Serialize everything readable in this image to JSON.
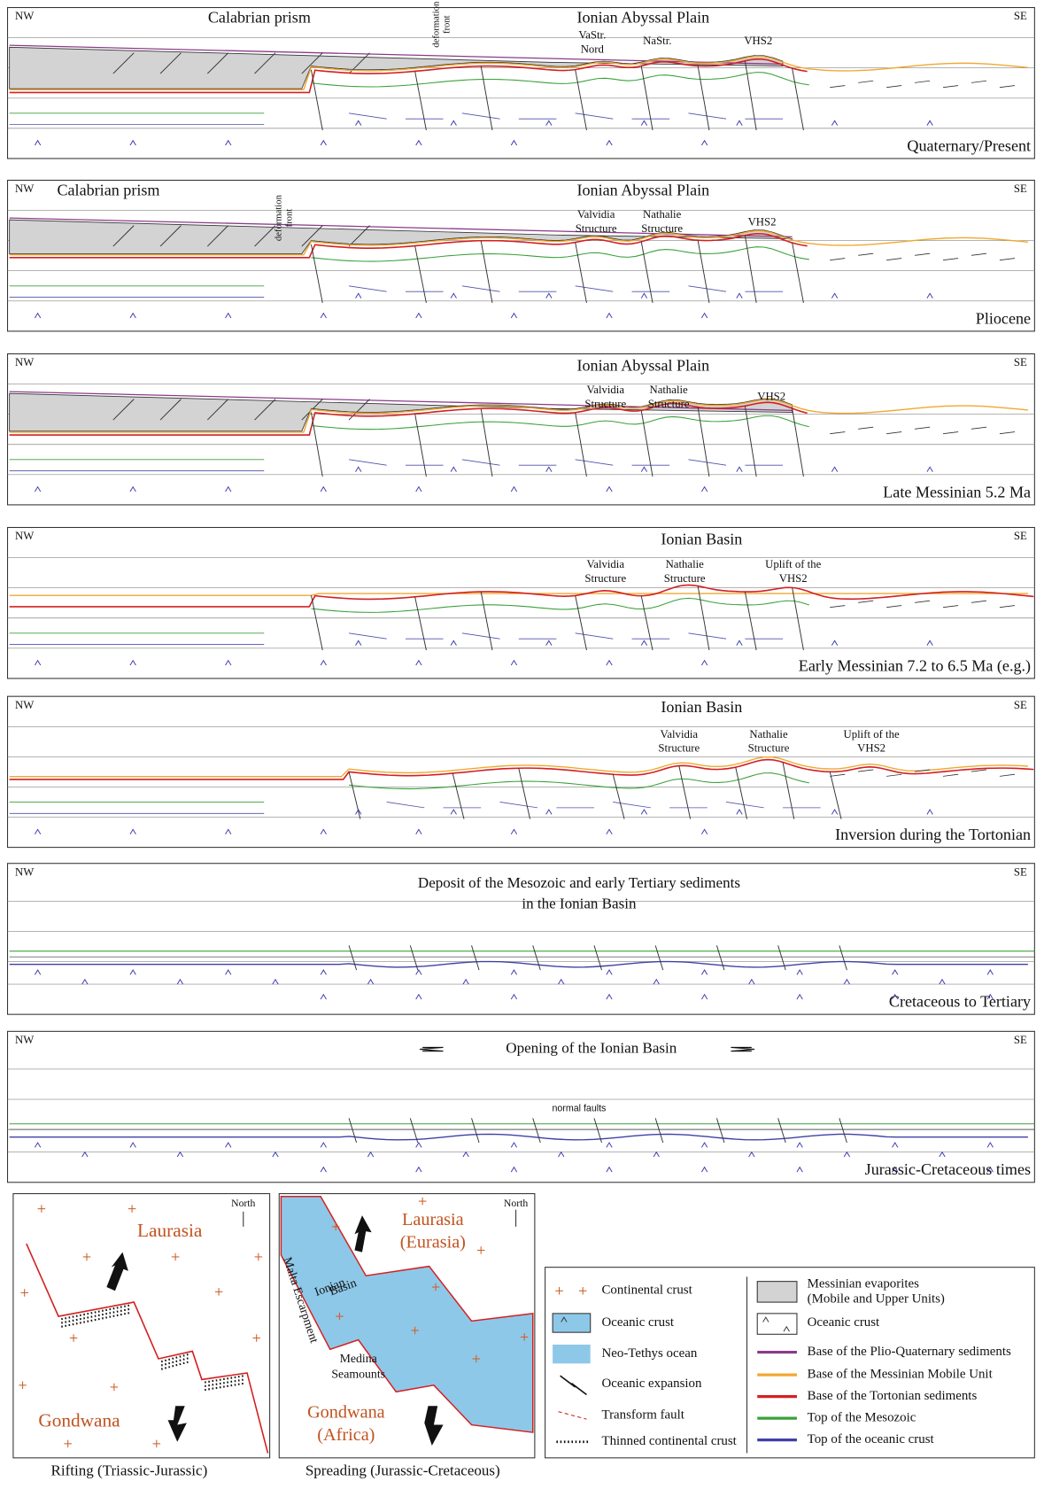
{
  "panels": [
    {
      "corner_left": "NW",
      "corner_right": "SE",
      "labels": [
        [
          "Calabrian prism"
        ],
        [
          "Ionian Abyssal Plain"
        ],
        [
          "deformation",
          "front"
        ],
        [
          "VaStr.",
          "Nord"
        ],
        [
          "NaStr."
        ],
        [
          "VHS2"
        ]
      ],
      "stage": "Quaternary/Present"
    },
    {
      "corner_left": "NW",
      "corner_right": "SE",
      "labels": [
        [
          "Calabrian prism"
        ],
        [
          "Ionian Abyssal Plain"
        ],
        [
          "deformation",
          "front"
        ],
        [
          "Valvidia",
          "Structure"
        ],
        [
          "Nathalie",
          "Structure"
        ],
        [
          "VHS2"
        ]
      ],
      "stage": "Pliocene"
    },
    {
      "corner_left": "NW",
      "corner_right": "SE",
      "labels": [
        [
          "Ionian Abyssal Plain"
        ],
        [
          "Valvidia",
          "Structure"
        ],
        [
          "Nathalie",
          "Structure"
        ],
        [
          "VHS2"
        ]
      ],
      "stage": "Late Messinian 5.2 Ma"
    },
    {
      "corner_left": "NW",
      "corner_right": "SE",
      "labels": [
        [
          "Ionian Basin"
        ],
        [
          "Valvidia",
          "Structure"
        ],
        [
          "Nathalie",
          "Structure"
        ],
        [
          "Uplift of the",
          "VHS2"
        ]
      ],
      "stage": "Early Messinian 7.2 to 6.5 Ma (e.g.)"
    },
    {
      "corner_left": "NW",
      "corner_right": "SE",
      "labels": [
        [
          "Ionian Basin"
        ],
        [
          "Valvidia",
          "Structure"
        ],
        [
          "Nathalie",
          "Structure"
        ],
        [
          "Uplift of the",
          "VHS2"
        ]
      ],
      "stage": "Inversion during the Tortonian"
    },
    {
      "corner_left": "NW",
      "corner_right": "SE",
      "labels": [
        [
          "Deposit of the Mesozoic and early Tertiary sediments",
          "in the Ionian Basin"
        ]
      ],
      "stage": "Cretaceous to Tertiary"
    },
    {
      "corner_left": "NW",
      "corner_right": "SE",
      "labels": [
        [
          "Opening of the Ionian Basin"
        ],
        [
          "normal faults"
        ]
      ],
      "stage": "Jurassic-Cretaceous times"
    }
  ],
  "maps": [
    {
      "north": "North",
      "labels": [
        [
          "Laurasia"
        ],
        [
          "Gondwana"
        ]
      ],
      "caption": "Rifting (Triassic-Jurassic)"
    },
    {
      "north": "North",
      "labels": [
        [
          "Laurasia",
          "(Eurasia)"
        ],
        [
          "Ionian",
          "Basin"
        ],
        [
          "Malta Escarpment"
        ],
        [
          "Medina",
          "Seamounts"
        ],
        [
          "Gondwana",
          "(Africa)"
        ]
      ],
      "caption": "Spreading (Jurassic-Cretaceous)"
    }
  ],
  "legend": {
    "left": [
      [
        "Continental crust"
      ],
      [
        "Oceanic crust"
      ],
      [
        "Neo-Tethys ocean"
      ],
      [
        "Oceanic expansion"
      ],
      [
        "Transform fault"
      ],
      [
        "Thinned continental crust"
      ]
    ],
    "right": [
      [
        "Messinian evaporites",
        "(Mobile and Upper Units)"
      ],
      [
        "Oceanic crust"
      ],
      [
        "Base of the Plio-Quaternary sediments"
      ],
      [
        "Base of the Messinian Mobile Unit"
      ],
      [
        "Base of the Tortonian sediments"
      ],
      [
        "Top of the Mesozoic"
      ],
      [
        "Top of the oceanic crust"
      ]
    ]
  }
}
